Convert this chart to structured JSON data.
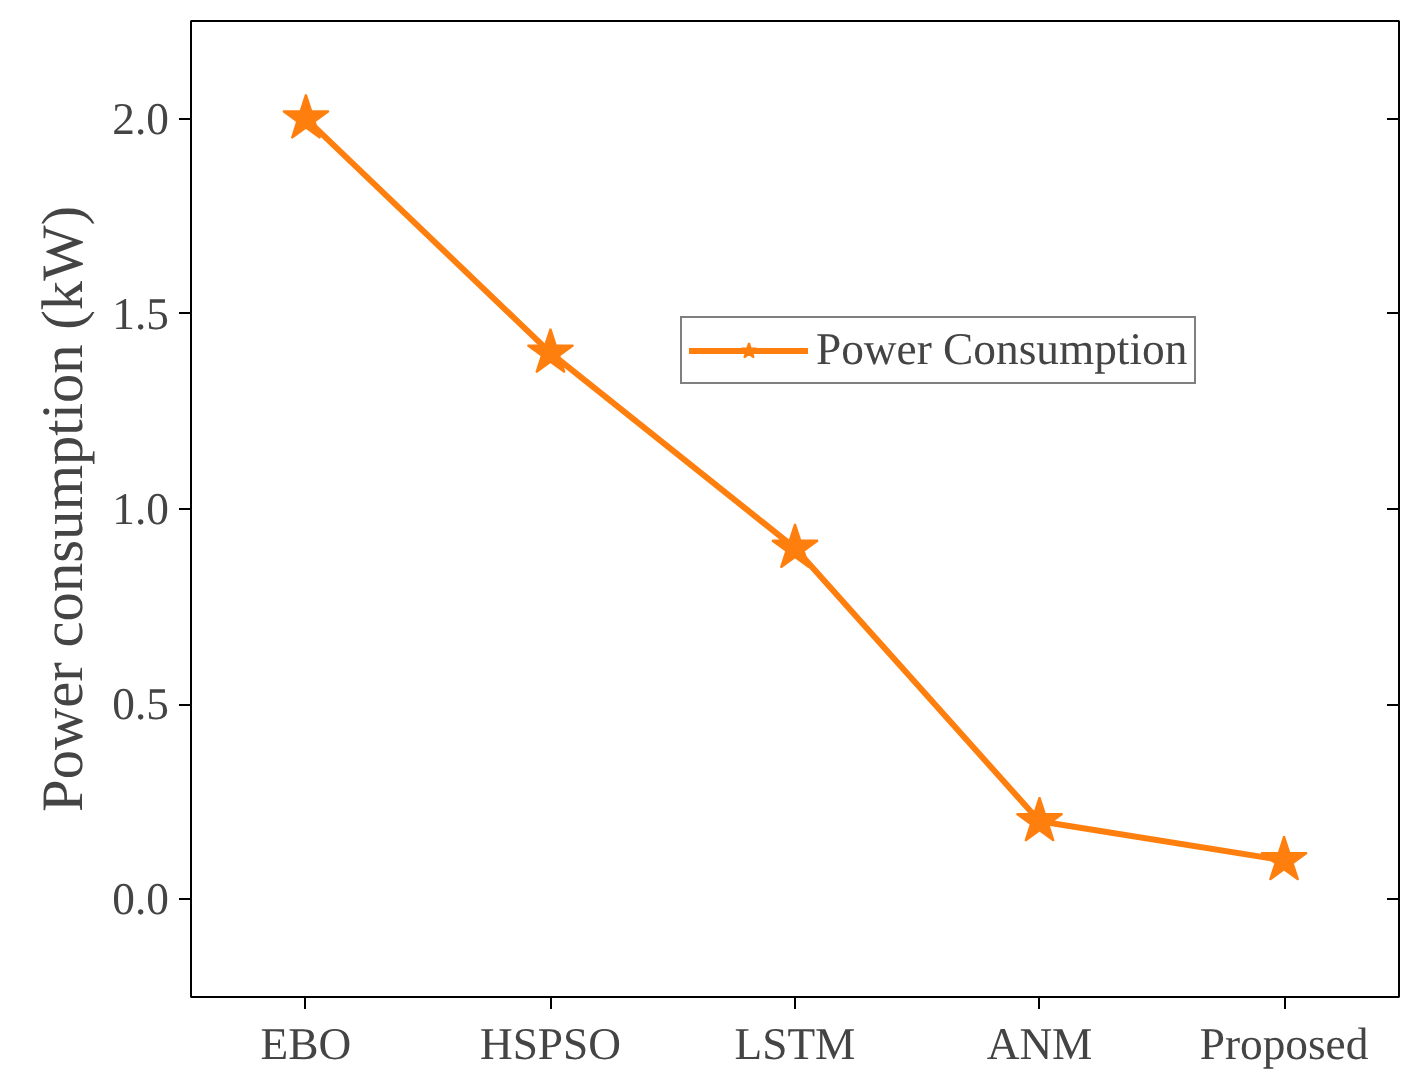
{
  "chart_data": {
    "type": "line",
    "ylabel": "Power consumption (kW)",
    "categories": [
      "EBO",
      "HSPSO",
      "LSTM",
      "ANM",
      "Proposed"
    ],
    "series": [
      {
        "name": "Power Consumption",
        "color": "#ff7f0e",
        "values": [
          2.0,
          1.4,
          0.9,
          0.2,
          0.1
        ]
      }
    ],
    "ylim": [
      -0.25,
      2.25
    ],
    "yticks": [
      {
        "value": 0,
        "label": "0.0"
      },
      {
        "value": 0.5,
        "label": "0.5"
      },
      {
        "value": 1,
        "label": "1.0"
      },
      {
        "value": 1.5,
        "label": "1.5"
      },
      {
        "value": 2,
        "label": "2.0"
      }
    ],
    "grid": false,
    "legend": "right",
    "marker": "star",
    "line_style": "solid"
  }
}
